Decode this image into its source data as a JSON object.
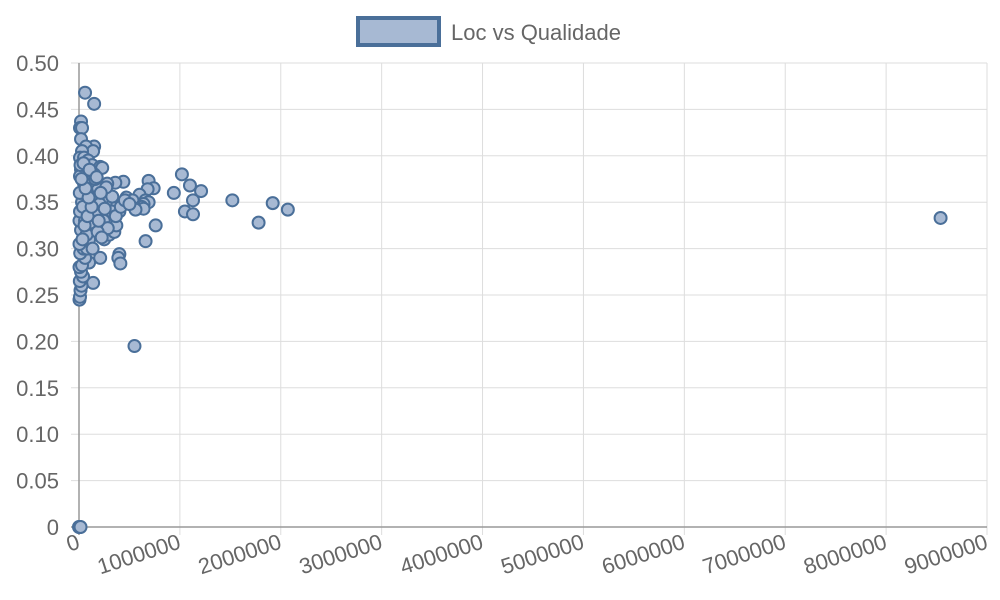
{
  "chart_data": {
    "type": "scatter",
    "title": "",
    "xlabel": "",
    "ylabel": "",
    "xlim": [
      0,
      9000000
    ],
    "ylim": [
      0,
      0.5
    ],
    "grid": true,
    "legend_position": "top-center",
    "x_ticks": [
      0,
      1000000,
      2000000,
      3000000,
      4000000,
      5000000,
      6000000,
      7000000,
      8000000,
      9000000
    ],
    "x_tick_labels": [
      "0",
      "1000000",
      "2000000",
      "3000000",
      "4000000",
      "5000000",
      "6000000",
      "7000000",
      "8000000",
      "9000000"
    ],
    "y_ticks": [
      0,
      0.05,
      0.1,
      0.15,
      0.2,
      0.25,
      0.3,
      0.35,
      0.4,
      0.45,
      0.5
    ],
    "y_tick_labels": [
      "0",
      "0.05",
      "0.10",
      "0.15",
      "0.20",
      "0.25",
      "0.30",
      "0.35",
      "0.40",
      "0.45",
      "0.50"
    ],
    "colors": {
      "point_fill": "#a7b9d3",
      "point_stroke": "#4a6f99",
      "grid": "#dddddd",
      "axis": "#999999",
      "text": "#666666"
    },
    "series": [
      {
        "name": "Loc vs Qualidade",
        "points": [
          [
            0,
            0
          ],
          [
            5000,
            0
          ],
          [
            10000,
            0
          ],
          [
            15000,
            0
          ],
          [
            60000,
            0.468
          ],
          [
            150000,
            0.456
          ],
          [
            20000,
            0.437
          ],
          [
            10000,
            0.43
          ],
          [
            30000,
            0.43
          ],
          [
            20000,
            0.418
          ],
          [
            150000,
            0.41
          ],
          [
            70000,
            0.41
          ],
          [
            140000,
            0.405
          ],
          [
            30000,
            0.405
          ],
          [
            10000,
            0.398
          ],
          [
            50000,
            0.398
          ],
          [
            90000,
            0.395
          ],
          [
            130000,
            0.39
          ],
          [
            210000,
            0.388
          ],
          [
            230000,
            0.387
          ],
          [
            20000,
            0.385
          ],
          [
            80000,
            0.383
          ],
          [
            150000,
            0.38
          ],
          [
            10000,
            0.378
          ],
          [
            1020000,
            0.38
          ],
          [
            690000,
            0.373
          ],
          [
            440000,
            0.372
          ],
          [
            360000,
            0.371
          ],
          [
            280000,
            0.37
          ],
          [
            1100000,
            0.368
          ],
          [
            740000,
            0.365
          ],
          [
            680000,
            0.364
          ],
          [
            1210000,
            0.362
          ],
          [
            940000,
            0.36
          ],
          [
            600000,
            0.358
          ],
          [
            470000,
            0.355
          ],
          [
            530000,
            0.352
          ],
          [
            660000,
            0.352
          ],
          [
            690000,
            0.35
          ],
          [
            640000,
            0.348
          ],
          [
            620000,
            0.345
          ],
          [
            580000,
            0.343
          ],
          [
            640000,
            0.343
          ],
          [
            560000,
            0.342
          ],
          [
            400000,
            0.34
          ],
          [
            1130000,
            0.352
          ],
          [
            1050000,
            0.34
          ],
          [
            1130000,
            0.337
          ],
          [
            1520000,
            0.352
          ],
          [
            1920000,
            0.349
          ],
          [
            2070000,
            0.342
          ],
          [
            1780000,
            0.328
          ],
          [
            760000,
            0.325
          ],
          [
            660000,
            0.308
          ],
          [
            8540000,
            0.333
          ],
          [
            400000,
            0.294
          ],
          [
            390000,
            0.29
          ],
          [
            410000,
            0.284
          ],
          [
            210000,
            0.29
          ],
          [
            140000,
            0.263
          ],
          [
            100000,
            0.285
          ],
          [
            550000,
            0.195
          ],
          [
            5000,
            0.245
          ],
          [
            10000,
            0.248
          ],
          [
            15000,
            0.255
          ],
          [
            25000,
            0.26
          ],
          [
            8000,
            0.265
          ],
          [
            40000,
            0.27
          ],
          [
            20000,
            0.275
          ],
          [
            5000,
            0.28
          ],
          [
            30000,
            0.282
          ],
          [
            60000,
            0.29
          ],
          [
            12000,
            0.295
          ],
          [
            45000,
            0.3
          ],
          [
            80000,
            0.3
          ],
          [
            5000,
            0.305
          ],
          [
            100000,
            0.31
          ],
          [
            250000,
            0.31
          ],
          [
            300000,
            0.315
          ],
          [
            350000,
            0.318
          ],
          [
            20000,
            0.32
          ],
          [
            150000,
            0.32
          ],
          [
            200000,
            0.322
          ],
          [
            370000,
            0.325
          ],
          [
            5000,
            0.33
          ],
          [
            60000,
            0.33
          ],
          [
            120000,
            0.332
          ],
          [
            180000,
            0.335
          ],
          [
            260000,
            0.336
          ],
          [
            320000,
            0.338
          ],
          [
            10000,
            0.34
          ],
          [
            90000,
            0.34
          ],
          [
            140000,
            0.342
          ],
          [
            220000,
            0.344
          ],
          [
            300000,
            0.345
          ],
          [
            380000,
            0.347
          ],
          [
            30000,
            0.35
          ],
          [
            110000,
            0.35
          ],
          [
            170000,
            0.352
          ],
          [
            240000,
            0.355
          ],
          [
            330000,
            0.356
          ],
          [
            20000,
            0.36
          ],
          [
            70000,
            0.36
          ],
          [
            130000,
            0.362
          ],
          [
            190000,
            0.365
          ],
          [
            270000,
            0.366
          ],
          [
            50000,
            0.37
          ],
          [
            100000,
            0.372
          ],
          [
            160000,
            0.375
          ],
          [
            8000,
            0.36
          ],
          [
            40000,
            0.345
          ],
          [
            75000,
            0.315
          ],
          [
            115000,
            0.328
          ],
          [
            165000,
            0.338
          ],
          [
            205000,
            0.348
          ],
          [
            245000,
            0.33
          ],
          [
            285000,
            0.322
          ],
          [
            325000,
            0.34
          ],
          [
            365000,
            0.335
          ],
          [
            415000,
            0.345
          ],
          [
            455000,
            0.352
          ],
          [
            500000,
            0.348
          ],
          [
            35000,
            0.31
          ],
          [
            55000,
            0.325
          ],
          [
            85000,
            0.335
          ],
          [
            125000,
            0.345
          ],
          [
            95000,
            0.355
          ],
          [
            65000,
            0.365
          ],
          [
            25000,
            0.375
          ],
          [
            15000,
            0.39
          ],
          [
            45000,
            0.392
          ],
          [
            105000,
            0.385
          ],
          [
            175000,
            0.377
          ],
          [
            215000,
            0.36
          ],
          [
            255000,
            0.343
          ],
          [
            135000,
            0.3
          ],
          [
            185000,
            0.318
          ],
          [
            225000,
            0.312
          ],
          [
            195000,
            0.33
          ]
        ]
      }
    ]
  }
}
